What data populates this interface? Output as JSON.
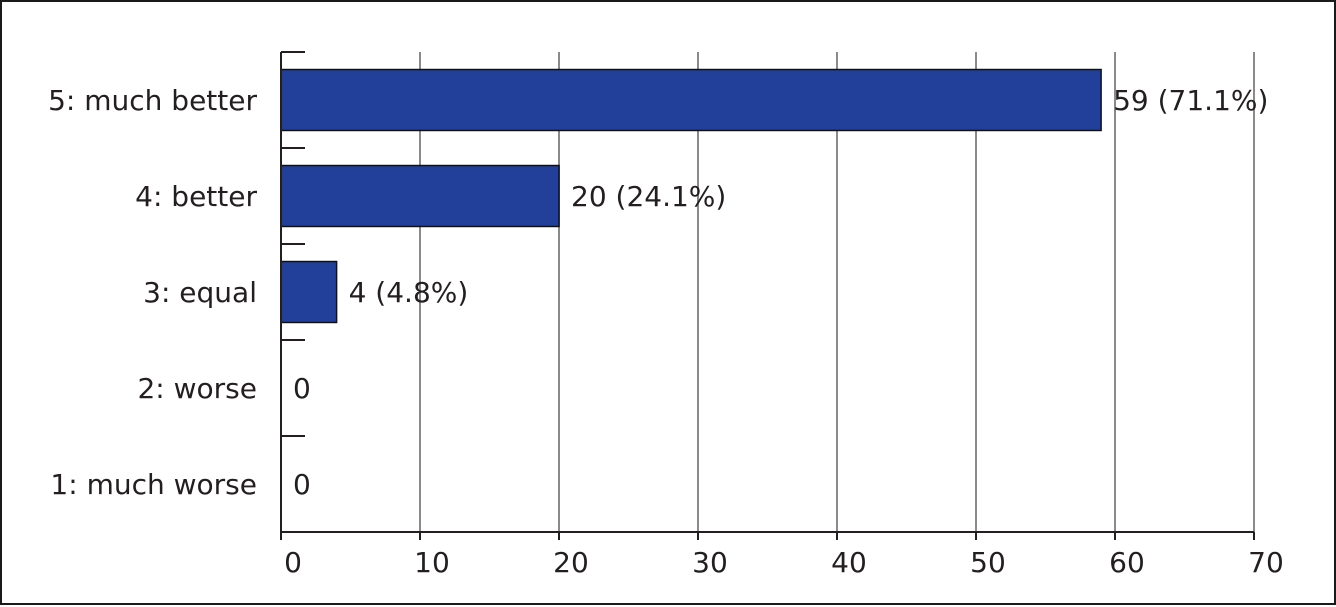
{
  "chart_data": {
    "type": "bar",
    "orientation": "horizontal",
    "categories": [
      "5: much better",
      "4: better",
      "3: equal",
      "2: worse",
      "1: much worse"
    ],
    "values": [
      59,
      20,
      4,
      0,
      0
    ],
    "data_labels": [
      "59 (71.1%)",
      "20 (24.1%)",
      "4 (4.8%)",
      "0",
      "0"
    ],
    "x_ticks": [
      "0",
      "10",
      "20",
      "30",
      "40",
      "50",
      "60",
      "70"
    ],
    "xlim": [
      0,
      70
    ],
    "title": "",
    "xlabel": "",
    "ylabel": "",
    "grid": "vertical",
    "legend": "none",
    "colors": {
      "bar": "#22409a",
      "bar_edge": "#111111",
      "grid": "#8a8a8a",
      "axis": "#231f20",
      "text": "#231f20"
    }
  }
}
